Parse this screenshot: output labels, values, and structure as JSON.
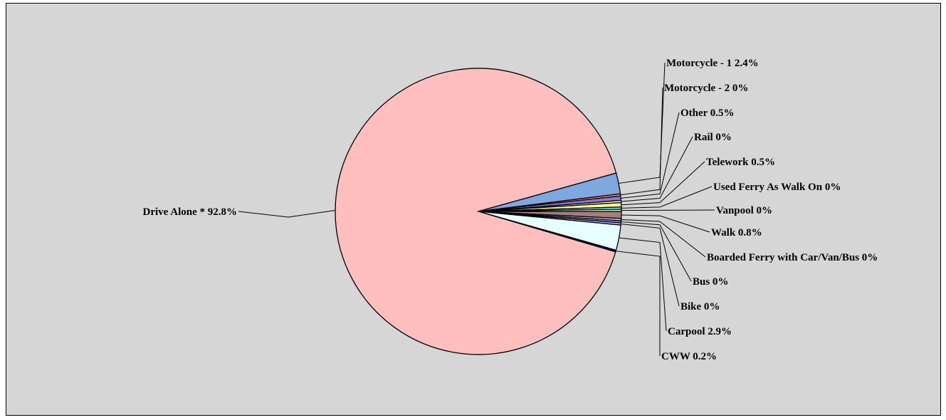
{
  "chart_data": {
    "type": "pie",
    "title": "",
    "start": "rightmost-clockwise",
    "slices": [
      {
        "label": "Walk",
        "value": 0.8,
        "display": "0.8%",
        "text": "Walk 0.8%",
        "color": "#a87d7d"
      },
      {
        "label": "Boarded Ferry with Car/Van/Bus",
        "value": 0,
        "display": "0%",
        "text": "Boarded Ferry with Car/Van/Bus 0%",
        "color": "#e8d0d0"
      },
      {
        "label": "Bus",
        "value": 0,
        "display": "0%",
        "text": "Bus 0%",
        "color": "#7d7dff"
      },
      {
        "label": "Bike",
        "value": 0,
        "display": "0%",
        "text": "Bike 0%",
        "color": "#c0c0ff"
      },
      {
        "label": "Carpool",
        "value": 2.9,
        "display": "2.9%",
        "text": "Carpool 2.9%",
        "color": "#e8ffff"
      },
      {
        "label": "CWW",
        "value": 0.2,
        "display": "0.2%",
        "text": "CWW 0.2%",
        "color": "#000080"
      },
      {
        "label": "Drive Alone *",
        "value": 92.8,
        "display": "92.8%",
        "text": "Drive Alone * 92.8%",
        "color": "#ffbfbf"
      },
      {
        "label": "Motorcycle - 1",
        "value": 2.4,
        "display": "2.4%",
        "text": "Motorcycle - 1 2.4%",
        "color": "#7fa8e0"
      },
      {
        "label": "Motorcycle - 2",
        "value": 0,
        "display": "0%",
        "text": "Motorcycle - 2 0%",
        "color": "#ff8080"
      },
      {
        "label": "Other",
        "value": 0.5,
        "display": "0.5%",
        "text": "Other 0.5%",
        "color": "#8a7ae0"
      },
      {
        "label": "Rail",
        "value": 0,
        "display": "0%",
        "text": "Rail 0%",
        "color": "#ffff80"
      },
      {
        "label": "Telework",
        "value": 0.5,
        "display": "0.5%",
        "text": "Telework 0.5%",
        "color": "#fff2a0"
      },
      {
        "label": "Used Ferry As Walk On",
        "value": 0,
        "display": "0%",
        "text": "Used Ferry As Walk On 0%",
        "color": "#80ffff"
      },
      {
        "label": "Vanpool",
        "value": 0,
        "display": "0%",
        "text": "Vanpool 0%",
        "color": "#b0ffb0"
      }
    ],
    "legend": "none",
    "background_color": "#d6d6d6"
  }
}
